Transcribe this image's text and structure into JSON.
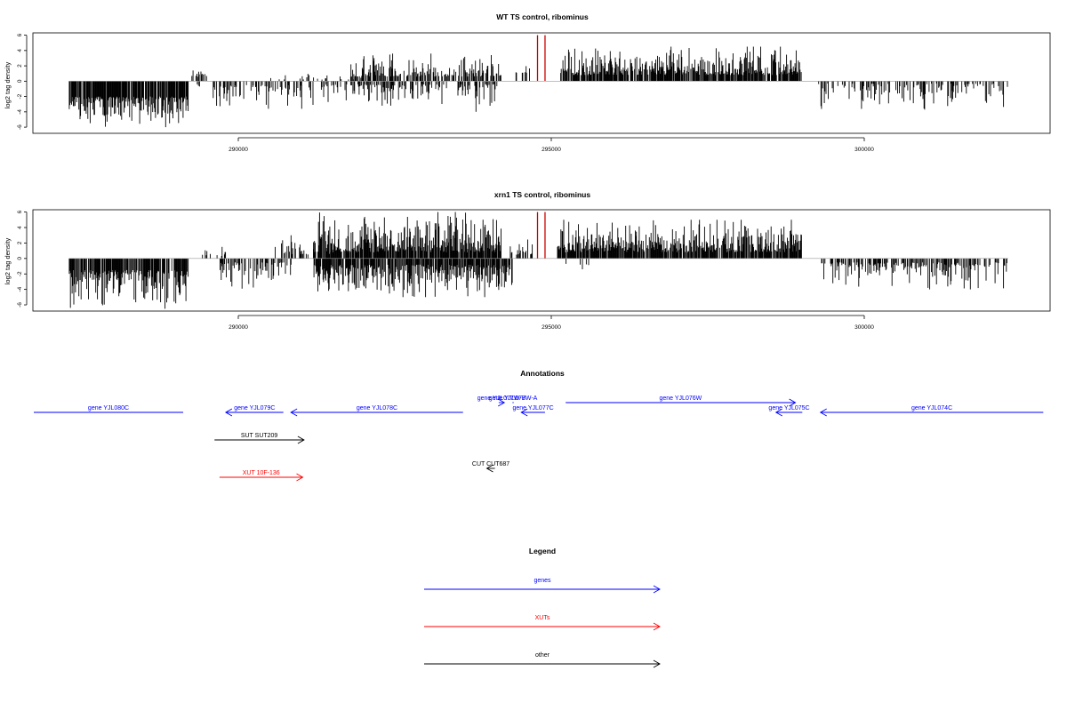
{
  "colors": {
    "gene": "#0000ff",
    "xut": "#ff0000",
    "other": "#000000",
    "highlight": "#cc0000",
    "bar": "#000000"
  },
  "panels": [
    {
      "title": "WT TS control, ribominus",
      "ylabel": "log2 tag density"
    },
    {
      "title": "xrn1 TS control, ribominus",
      "ylabel": "log2 tag density"
    }
  ],
  "annotations_title": "Annotations",
  "legend": {
    "title": "Legend",
    "items": [
      {
        "label": "genes",
        "color": "#0000ff"
      },
      {
        "label": "XUTs",
        "color": "#ff0000"
      },
      {
        "label": "other",
        "color": "#000000"
      }
    ]
  },
  "chart_data": [
    {
      "type": "bar",
      "title": "WT TS control, ribominus",
      "ylabel": "log2 tag density",
      "xlim": [
        287100,
        302500
      ],
      "ylim": [
        -6.8,
        6.3
      ],
      "x_ticks": [
        290000,
        295000,
        300000
      ],
      "x_tick_labels": [
        "290000",
        "295000",
        "300000"
      ],
      "y_ticks": [
        -6,
        -4,
        -2,
        0,
        2,
        4,
        6
      ],
      "y_tick_labels": [
        "-6",
        "-4",
        "-2",
        "0",
        "2",
        "4",
        "6"
      ],
      "highlight_x": [
        294780,
        294900
      ],
      "highlight_height": 6,
      "segments": [
        {
          "from": 287300,
          "to": 289200,
          "sign": -1,
          "min": 2.0,
          "max": 6.0,
          "density": 0.85,
          "seed": 3
        },
        {
          "from": 289300,
          "to": 289750,
          "sign": -1,
          "min": 0.3,
          "max": 1.0,
          "density": 0.12,
          "seed": 5
        },
        {
          "from": 289250,
          "to": 289500,
          "sign": 1,
          "min": 0.5,
          "max": 2.0,
          "density": 0.25,
          "seed": 7
        },
        {
          "from": 289600,
          "to": 291200,
          "sign": -1,
          "min": 0.5,
          "max": 3.6,
          "density": 0.35,
          "seed": 9
        },
        {
          "from": 290500,
          "to": 292000,
          "sign": 1,
          "min": 0.2,
          "max": 1.2,
          "density": 0.15,
          "seed": 11
        },
        {
          "from": 291300,
          "to": 293400,
          "sign": -1,
          "min": 0.4,
          "max": 3.2,
          "density": 0.4,
          "seed": 13
        },
        {
          "from": 291800,
          "to": 294200,
          "sign": 1,
          "min": 0.6,
          "max": 3.6,
          "density": 0.55,
          "seed": 15
        },
        {
          "from": 293500,
          "to": 294200,
          "sign": -1,
          "min": 0.4,
          "max": 4.0,
          "density": 0.4,
          "seed": 17
        },
        {
          "from": 294400,
          "to": 294700,
          "sign": 1,
          "min": 1.0,
          "max": 2.5,
          "density": 0.3,
          "seed": 19
        },
        {
          "from": 295150,
          "to": 299000,
          "sign": 1,
          "min": 0.8,
          "max": 4.5,
          "density": 0.8,
          "seed": 21
        },
        {
          "from": 299200,
          "to": 302300,
          "sign": -1,
          "min": 0.3,
          "max": 4.2,
          "density": 0.35,
          "seed": 23
        }
      ]
    },
    {
      "type": "bar",
      "title": "xrn1 TS control, ribominus",
      "ylabel": "log2 tag density",
      "xlim": [
        287100,
        302500
      ],
      "ylim": [
        -6.8,
        6.3
      ],
      "x_ticks": [
        290000,
        295000,
        300000
      ],
      "x_tick_labels": [
        "290000",
        "295000",
        "300000"
      ],
      "y_ticks": [
        -6,
        -4,
        -2,
        0,
        2,
        4,
        6
      ],
      "y_tick_labels": [
        "-6",
        "-4",
        "-2",
        "0",
        "2",
        "4",
        "6"
      ],
      "highlight_x": [
        294780,
        294900
      ],
      "highlight_height": 6,
      "segments": [
        {
          "from": 287300,
          "to": 289200,
          "sign": -1,
          "min": 1.5,
          "max": 6.5,
          "density": 0.8,
          "seed": 31
        },
        {
          "from": 289400,
          "to": 289800,
          "sign": 1,
          "min": 0.3,
          "max": 1.5,
          "density": 0.2,
          "seed": 33
        },
        {
          "from": 289700,
          "to": 290900,
          "sign": -1,
          "min": 0.5,
          "max": 4.0,
          "density": 0.4,
          "seed": 35
        },
        {
          "from": 290500,
          "to": 291500,
          "sign": 1,
          "min": 0.5,
          "max": 3.0,
          "density": 0.3,
          "seed": 37
        },
        {
          "from": 291200,
          "to": 294200,
          "sign": 1,
          "min": 0.8,
          "max": 6.0,
          "density": 0.85,
          "seed": 39
        },
        {
          "from": 291200,
          "to": 294400,
          "sign": -1,
          "min": 0.8,
          "max": 5.0,
          "density": 0.8,
          "seed": 41
        },
        {
          "from": 294300,
          "to": 294700,
          "sign": 1,
          "min": 0.5,
          "max": 2.5,
          "density": 0.4,
          "seed": 43
        },
        {
          "from": 295100,
          "to": 299000,
          "sign": 1,
          "min": 0.8,
          "max": 5.0,
          "density": 0.85,
          "seed": 45
        },
        {
          "from": 295200,
          "to": 295600,
          "sign": -1,
          "min": 0.5,
          "max": 2.5,
          "density": 0.2,
          "seed": 47
        },
        {
          "from": 299300,
          "to": 302300,
          "sign": -1,
          "min": 0.5,
          "max": 4.0,
          "density": 0.5,
          "seed": 49
        }
      ]
    },
    {
      "type": "annotation-track",
      "title": "Annotations",
      "xlim": [
        287100,
        302500
      ],
      "features": [
        {
          "label": "gene YJL080C",
          "kind": "gene",
          "start": 286630,
          "end": 289120,
          "strand": "none",
          "row": 0
        },
        {
          "label": "gene YJL079C",
          "kind": "gene",
          "start": 289800,
          "end": 290720,
          "strand": "-",
          "row": 0
        },
        {
          "label": "gene YJL078C",
          "kind": "gene",
          "start": 290840,
          "end": 293590,
          "strand": "-",
          "row": 0
        },
        {
          "label": "gene YJL077W-B",
          "kind": "gene",
          "start": 294160,
          "end": 294250,
          "strand": "+",
          "row": -1
        },
        {
          "label": "gene YJL077W-A",
          "kind": "gene",
          "start": 294380,
          "end": 294400,
          "strand": "none",
          "row": -1
        },
        {
          "label": "gene YJL077C",
          "kind": "gene",
          "start": 294520,
          "end": 294900,
          "strand": "-",
          "row": 0
        },
        {
          "label": "gene YJL076W",
          "kind": "gene",
          "start": 295230,
          "end": 298900,
          "strand": "+",
          "row": -1
        },
        {
          "label": "gene YJL075C",
          "kind": "gene",
          "start": 298590,
          "end": 299010,
          "strand": "-",
          "row": 0
        },
        {
          "label": "gene YJL074C",
          "kind": "gene",
          "start": 299300,
          "end": 302860,
          "strand": "-",
          "row": 0
        },
        {
          "label": "SUT SUT209",
          "kind": "other",
          "start": 289620,
          "end": 291050,
          "strand": "+",
          "row": 1
        },
        {
          "label": "CUT CUT687",
          "kind": "other",
          "start": 293970,
          "end": 294100,
          "strand": "-",
          "row": 2
        },
        {
          "label": "XUT 10F-136",
          "kind": "xut",
          "start": 289700,
          "end": 291030,
          "strand": "+",
          "row": 3
        }
      ]
    }
  ]
}
